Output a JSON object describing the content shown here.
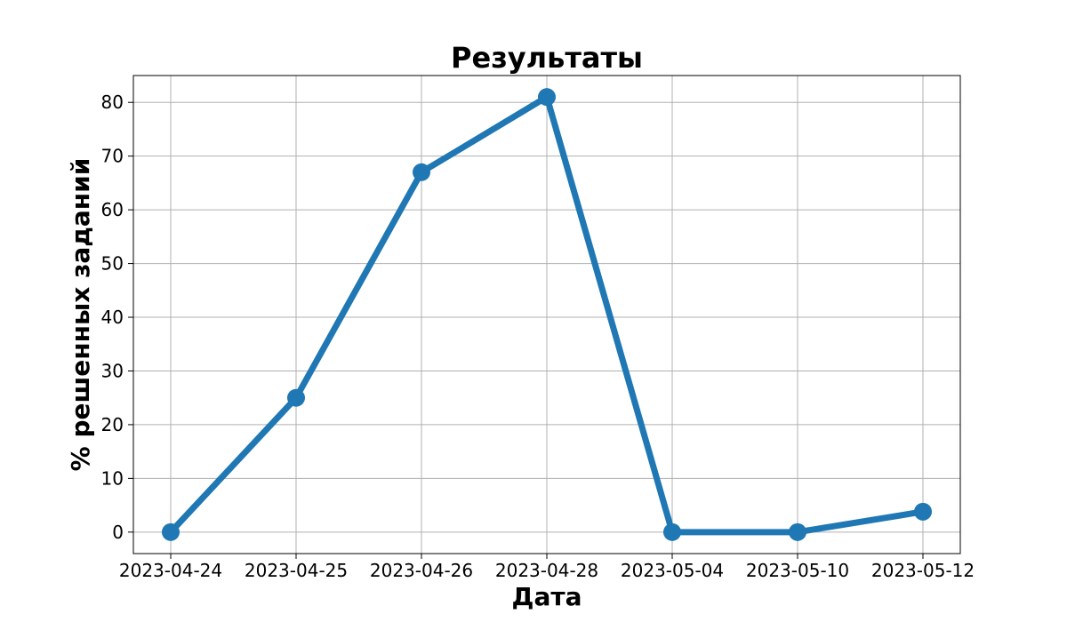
{
  "chart_data": {
    "type": "line",
    "title": "Результаты",
    "xlabel": "Дата",
    "ylabel": "% решенных заданий",
    "categories": [
      "2023-04-24",
      "2023-04-25",
      "2023-04-26",
      "2023-04-28",
      "2023-05-04",
      "2023-05-10",
      "2023-05-12"
    ],
    "series": [
      {
        "values": [
          0,
          25,
          67,
          81,
          0,
          0,
          3.8
        ]
      }
    ],
    "y_ticks": [
      "0",
      "10",
      "20",
      "30",
      "40",
      "50",
      "60",
      "70",
      "80"
    ],
    "ylim": [
      -4,
      85
    ],
    "grid": true,
    "colors": {
      "line": "#1f77b4",
      "grid": "#b0b0b0",
      "axes": "#000000"
    }
  }
}
